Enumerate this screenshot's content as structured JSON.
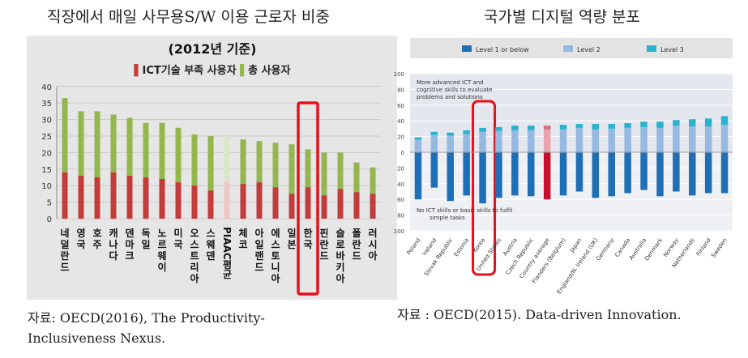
{
  "left_panel": {
    "heading": "직장에서 매일 사무용S/W 이용 근로자 비중",
    "source_lines": [
      "자료: OECD(2016), The Productivity-",
      "Inclusiveness Nexus."
    ]
  },
  "right_panel": {
    "heading": "국가별 디지털 역량 분포",
    "source": "자료 : OECD(2015). Data-driven Innovation."
  },
  "colors": {
    "total_green": "#93b64f",
    "ict_red": "#c23c3c",
    "highlight": "#e8101a",
    "level1_blue": "#1f6fb6",
    "level2_blue": "#95b9e1",
    "level3_cyan": "#2ab3cf",
    "avg_red": "#c8102e"
  },
  "chart_data": [
    {
      "type": "bar",
      "title": "(2012년 기준)",
      "legend": [
        {
          "marker": "▌",
          "label": "ICT기술 부족 사용자",
          "color": "#c23c3c"
        },
        {
          "marker": "▌",
          "label": "총 사용자",
          "color": "#93b64f"
        }
      ],
      "ylim": [
        0,
        40
      ],
      "yticks": [
        "0",
        "5",
        "10",
        "15",
        "20",
        "25",
        "30",
        "35",
        "40"
      ],
      "grid": true,
      "categories": [
        "네덜란드",
        "영국",
        "호주",
        "캐나다",
        "덴마크",
        "독일",
        "노르웨이",
        "미국",
        "오스트리아",
        "스웨덴",
        "PIAAC 평균",
        "체코",
        "아일랜드",
        "에스토니아",
        "일본",
        "한국",
        "핀란드",
        "슬로바키아",
        "폴란드",
        "러시아"
      ],
      "series": [
        {
          "name": "총 사용자",
          "values": [
            36.5,
            32.5,
            32.5,
            31.5,
            30.5,
            29,
            29,
            27.5,
            25.5,
            25,
            25,
            24,
            23.5,
            23,
            22.5,
            21,
            20,
            20,
            17,
            15.5
          ]
        },
        {
          "name": "ICT기술 부족 사용자",
          "values": [
            14,
            13,
            12.5,
            14,
            13,
            12.5,
            12,
            11,
            10,
            8.5,
            11,
            10.5,
            11,
            9.5,
            7.5,
            9.5,
            7,
            9,
            8,
            7.5
          ]
        }
      ],
      "highlight_category": "한국"
    },
    {
      "type": "bar",
      "legend": [
        {
          "label": "Level 1 or below",
          "color": "#1f6fb6"
        },
        {
          "label": "Level 2",
          "color": "#95b9e1"
        },
        {
          "label": "Level 3",
          "color": "#2ab3cf"
        }
      ],
      "ylim": [
        -100,
        100
      ],
      "yticks": [
        "100",
        "80",
        "60",
        "40",
        "20",
        "0",
        "20",
        "40",
        "60",
        "80",
        "100"
      ],
      "grid": true,
      "annotations": [
        [
          "More advanced ICT and",
          "cognitive skills to evaluate",
          "problems and solutions"
        ],
        [
          "No ICT skills or basic skills to fulfil",
          "simple tasks"
        ]
      ],
      "categories": [
        "Poland",
        "Ireland",
        "Slovak Republic",
        "Estonia",
        "Korea",
        "United States",
        "Austria",
        "Czech Republic",
        "Country average",
        "Flanders (Belgium)",
        "Japan",
        "England/N. Ireland (UK)",
        "Germany",
        "Canada",
        "Australia",
        "Denmark",
        "Norway",
        "Netherlands",
        "Finland",
        "Sweden"
      ],
      "series": [
        {
          "name": "Level 1 or below",
          "values": [
            -60,
            -45,
            -62,
            -55,
            -65,
            -58,
            -55,
            -56,
            -60,
            -55,
            -50,
            -58,
            -56,
            -52,
            -48,
            -56,
            -50,
            -55,
            -52,
            -52
          ]
        },
        {
          "name": "Level 2",
          "values": [
            16,
            22,
            21,
            23,
            26,
            27,
            28,
            28,
            29,
            29,
            31,
            29,
            30,
            31,
            32,
            31,
            34,
            33,
            33,
            35
          ]
        },
        {
          "name": "Level 3",
          "values": [
            3,
            4,
            4,
            5,
            5,
            5,
            6,
            6,
            5,
            6,
            5,
            7,
            6,
            6,
            7,
            8,
            7,
            9,
            10,
            11
          ]
        }
      ],
      "highlight_category": "Korea",
      "average_category": "Country average"
    }
  ]
}
